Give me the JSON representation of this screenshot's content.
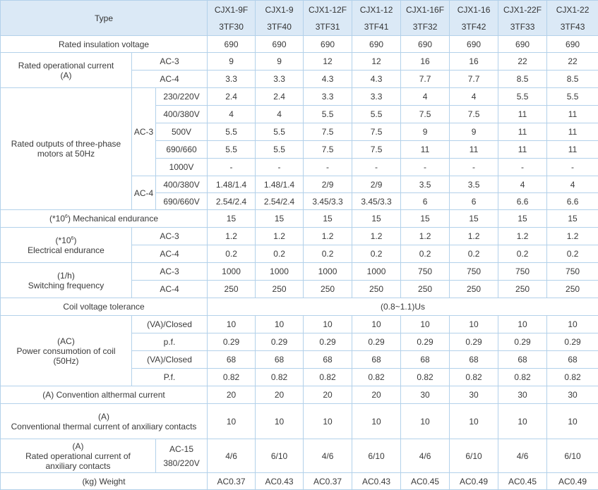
{
  "header": {
    "type_label": "Type",
    "models": [
      {
        "top": "CJX1-9F",
        "bottom": "3TF30"
      },
      {
        "top": "CJX1-9",
        "bottom": "3TF40"
      },
      {
        "top": "CJX1-12F",
        "bottom": "3TF31"
      },
      {
        "top": "CJX1-12",
        "bottom": "3TF41"
      },
      {
        "top": "CJX1-16F",
        "bottom": "3TF32"
      },
      {
        "top": "CJX1-16",
        "bottom": "3TF42"
      },
      {
        "top": "CJX1-22F",
        "bottom": "3TF33"
      },
      {
        "top": "CJX1-22",
        "bottom": "3TF43"
      }
    ]
  },
  "insulation": {
    "label": "Rated insulation voltage",
    "values": [
      "690",
      "690",
      "690",
      "690",
      "690",
      "690",
      "690",
      "690"
    ]
  },
  "op_current": {
    "label1": "Rated operational current",
    "label2": "(A)",
    "rows": [
      {
        "sub": "AC-3",
        "values": [
          "9",
          "9",
          "12",
          "12",
          "16",
          "16",
          "22",
          "22"
        ]
      },
      {
        "sub": "AC-4",
        "values": [
          "3.3",
          "3.3",
          "4.3",
          "4.3",
          "7.7",
          "7.7",
          "8.5",
          "8.5"
        ]
      }
    ]
  },
  "outputs": {
    "label1": "Rated outputs of three-phase",
    "label2": "motors at 50Hz",
    "ac3_label": "AC-3",
    "ac4_label": "AC-4",
    "ac3_rows": [
      {
        "volt": "230/220V",
        "values": [
          "2.4",
          "2.4",
          "3.3",
          "3.3",
          "4",
          "4",
          "5.5",
          "5.5"
        ]
      },
      {
        "volt": "400/380V",
        "values": [
          "4",
          "4",
          "5.5",
          "5.5",
          "7.5",
          "7.5",
          "11",
          "11"
        ]
      },
      {
        "volt": "500V",
        "values": [
          "5.5",
          "5.5",
          "7.5",
          "7.5",
          "9",
          "9",
          "11",
          "11"
        ]
      },
      {
        "volt": "690/660",
        "values": [
          "5.5",
          "5.5",
          "7.5",
          "7.5",
          "11",
          "11",
          "11",
          "11"
        ]
      },
      {
        "volt": "1000V",
        "values": [
          "-",
          "-",
          "-",
          "-",
          "-",
          "-",
          "-",
          "-"
        ]
      }
    ],
    "ac4_rows": [
      {
        "volt": "400/380V",
        "values": [
          "1.48/1.4",
          "1.48/1.4",
          "2/9",
          "2/9",
          "3.5",
          "3.5",
          "4",
          "4"
        ]
      },
      {
        "volt": "690/660V",
        "values": [
          "2.54/2.4",
          "2.54/2.4",
          "3.45/3.3",
          "3.45/3.3",
          "6",
          "6",
          "6.6",
          "6.6"
        ]
      }
    ]
  },
  "mechanical": {
    "prefix": "(*10",
    "exp": "6",
    "suffix": ") Mechanical endurance",
    "values": [
      "15",
      "15",
      "15",
      "15",
      "15",
      "15",
      "15",
      "15"
    ]
  },
  "electrical": {
    "prefix": "(*10",
    "exp": "6",
    "close": ")",
    "label2": "Electrical endurance",
    "rows": [
      {
        "sub": "AC-3",
        "values": [
          "1.2",
          "1.2",
          "1.2",
          "1.2",
          "1.2",
          "1.2",
          "1.2",
          "1.2"
        ]
      },
      {
        "sub": "AC-4",
        "values": [
          "0.2",
          "0.2",
          "0.2",
          "0.2",
          "0.2",
          "0.2",
          "0.2",
          "0.2"
        ]
      }
    ]
  },
  "switching": {
    "label1": "(1/h)",
    "label2": "Switching frequency",
    "rows": [
      {
        "sub": "AC-3",
        "values": [
          "1000",
          "1000",
          "1000",
          "1000",
          "750",
          "750",
          "750",
          "750"
        ]
      },
      {
        "sub": "AC-4",
        "values": [
          "250",
          "250",
          "250",
          "250",
          "250",
          "250",
          "250",
          "250"
        ]
      }
    ]
  },
  "coil_tolerance": {
    "label": "Coil voltage tolerance",
    "value": "(0.8~1.1)Us"
  },
  "power": {
    "label1": "(AC)",
    "label2": "Power consumotion of coil",
    "label3": "(50Hz)",
    "rows": [
      {
        "sub": "(VA)/Closed",
        "values": [
          "10",
          "10",
          "10",
          "10",
          "10",
          "10",
          "10",
          "10"
        ]
      },
      {
        "sub": "p.f.",
        "values": [
          "0.29",
          "0.29",
          "0.29",
          "0.29",
          "0.29",
          "0.29",
          "0.29",
          "0.29"
        ]
      },
      {
        "sub": "(VA)/Closed",
        "values": [
          "68",
          "68",
          "68",
          "68",
          "68",
          "68",
          "68",
          "68"
        ]
      },
      {
        "sub": "P.f.",
        "values": [
          "0.82",
          "0.82",
          "0.82",
          "0.82",
          "0.82",
          "0.82",
          "0.82",
          "0.82"
        ]
      }
    ]
  },
  "thermal": {
    "label": "(A) Convention althermal current",
    "values": [
      "20",
      "20",
      "20",
      "20",
      "30",
      "30",
      "30",
      "30"
    ]
  },
  "aux_thermal": {
    "label1": "(A)",
    "label2": "Conventional thermal current of anxiliary contacts",
    "values": [
      "10",
      "10",
      "10",
      "10",
      "10",
      "10",
      "10",
      "10"
    ]
  },
  "aux_op": {
    "label1": "(A)",
    "label2": "Rated operational current of",
    "label3": "anxiliary contacts",
    "sub1": "AC-15",
    "sub2": "380/220V",
    "values": [
      "4/6",
      "6/10",
      "4/6",
      "6/10",
      "4/6",
      "6/10",
      "4/6",
      "6/10"
    ]
  },
  "weight": {
    "label": "(kg) Weight",
    "values": [
      "AC0.37",
      "AC0.43",
      "AC0.37",
      "AC0.43",
      "AC0.45",
      "AC0.49",
      "AC0.45",
      "AC0.49"
    ]
  }
}
